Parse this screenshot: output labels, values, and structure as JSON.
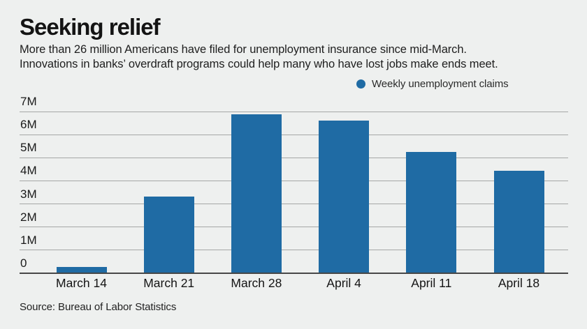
{
  "header": {
    "title": "Seeking relief",
    "subtitle_line1": "More than 26 million Americans have filed for unemployment insurance since mid-March.",
    "subtitle_line2": "Innovations in banks’ overdraft programs could help many who have lost jobs make ends meet."
  },
  "legend": {
    "marker_shape": "circle",
    "marker_color": "#1f6ba4",
    "label": "Weekly unemployment claims"
  },
  "chart_data": {
    "type": "bar",
    "title": "Seeking relief",
    "series_name": "Weekly unemployment claims",
    "categories": [
      "March 14",
      "March 21",
      "March 28",
      "April 4",
      "April 11",
      "April 18"
    ],
    "values": [
      0.28,
      3.31,
      6.87,
      6.62,
      5.25,
      4.44
    ],
    "values_unit": "millions of claims",
    "xlabel": "",
    "ylabel": "",
    "ylim": [
      0,
      7
    ],
    "yticks": [
      "0",
      "1M",
      "2M",
      "3M",
      "4M",
      "5M",
      "6M",
      "7M"
    ],
    "grid": "horizontal",
    "legend_position": "top-center",
    "bar_color": "#1f6ba4",
    "background_color": "#eef0ef"
  },
  "source": {
    "text": "Source: Bureau of Labor Statistics"
  }
}
